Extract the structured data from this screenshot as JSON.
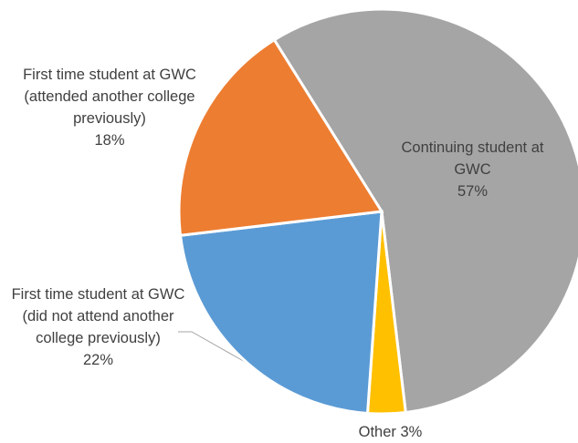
{
  "chart_data": {
    "type": "pie",
    "categories": [
      "Continuing student at GWC",
      "Other",
      "First time student at GWC (did not attend another college previously)",
      "First time student at GWC (attended another college previously)"
    ],
    "values": [
      57,
      3,
      22,
      18
    ],
    "value_labels": [
      "57%",
      "3%",
      "22%",
      "18%"
    ],
    "colors": [
      "#a5a5a5",
      "#ffc000",
      "#5b9bd5",
      "#ed7d31"
    ]
  }
}
